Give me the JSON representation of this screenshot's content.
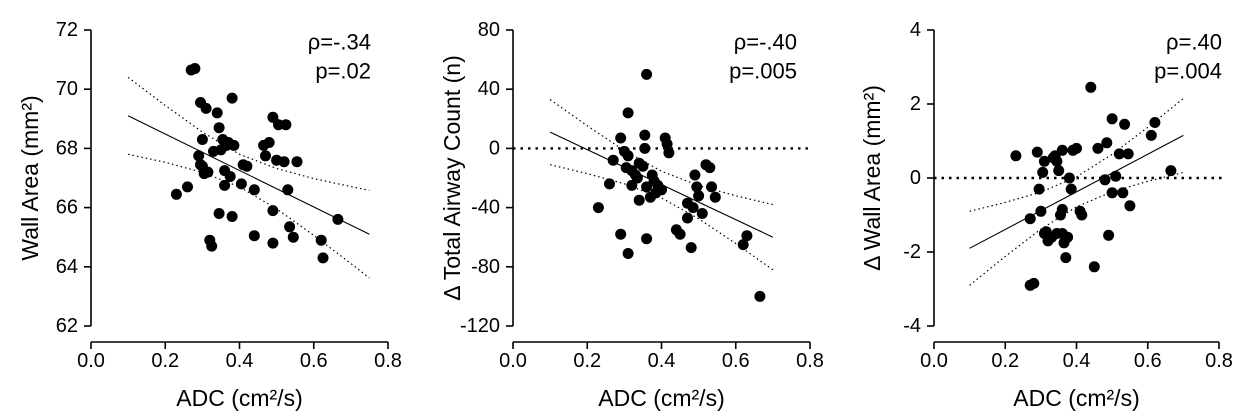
{
  "colors": {
    "foreground": "#000000",
    "background": "#ffffff"
  },
  "chart_data": [
    {
      "type": "scatter",
      "xlabel": "ADC (cm²/s)",
      "ylabel": "Wall Area (mm²)",
      "xlim": [
        0,
        0.8
      ],
      "ylim": [
        62,
        72
      ],
      "xtick_values": [
        0,
        0.2,
        0.4,
        0.6,
        0.8
      ],
      "xtick_labels": [
        "0.0",
        "0.2",
        "0.4",
        "0.6",
        "0.8"
      ],
      "ytick_values": [
        62,
        64,
        66,
        68,
        70,
        72
      ],
      "ytick_labels": [
        "62",
        "64",
        "66",
        "68",
        "70",
        "72"
      ],
      "annotations": [
        "ρ=-.34",
        "p=.02"
      ],
      "grid": false,
      "legend": "none",
      "reference_line_y": null,
      "points": {
        "x": [
          0.23,
          0.26,
          0.27,
          0.28,
          0.295,
          0.31,
          0.3,
          0.29,
          0.295,
          0.305,
          0.315,
          0.33,
          0.34,
          0.345,
          0.35,
          0.355,
          0.36,
          0.365,
          0.37,
          0.375,
          0.38,
          0.385,
          0.345,
          0.36,
          0.38,
          0.32,
          0.325,
          0.41,
          0.42,
          0.405,
          0.44,
          0.44,
          0.465,
          0.48,
          0.47,
          0.49,
          0.505,
          0.5,
          0.525,
          0.52,
          0.555,
          0.49,
          0.49,
          0.53,
          0.535,
          0.545,
          0.62,
          0.625,
          0.665,
          0.3
        ],
        "y": [
          66.45,
          66.7,
          70.65,
          70.7,
          69.55,
          69.35,
          68.3,
          67.75,
          67.45,
          67.15,
          67.2,
          67.9,
          69.2,
          68.7,
          67.95,
          68.3,
          67.25,
          68.1,
          68.2,
          67.05,
          69.7,
          68.1,
          65.8,
          66.75,
          65.7,
          64.9,
          64.7,
          67.45,
          67.4,
          66.8,
          66.6,
          65.05,
          68.1,
          68.2,
          67.75,
          69.05,
          68.8,
          67.6,
          68.8,
          67.55,
          67.55,
          65.9,
          64.8,
          66.6,
          65.35,
          65.0,
          64.9,
          64.3,
          65.6,
          67.4
        ]
      },
      "fit_line": {
        "x": [
          0.1,
          0.75
        ],
        "y": [
          69.1,
          65.1
        ]
      },
      "ci_upper": {
        "x": [
          0.1,
          0.2,
          0.3,
          0.4,
          0.5,
          0.6,
          0.7,
          0.75
        ],
        "y": [
          70.4,
          69.45,
          68.55,
          67.8,
          67.32,
          66.98,
          66.71,
          66.58
        ]
      },
      "ci_lower": {
        "x": [
          0.1,
          0.2,
          0.3,
          0.4,
          0.5,
          0.6,
          0.7,
          0.75
        ],
        "y": [
          67.8,
          67.53,
          67.19,
          66.7,
          65.96,
          65.06,
          64.11,
          63.62
        ]
      }
    },
    {
      "type": "scatter",
      "xlabel": "ADC (cm²/s)",
      "ylabel": "Δ Total Airway Count (n)",
      "xlim": [
        0,
        0.8
      ],
      "ylim": [
        -120,
        80
      ],
      "xtick_values": [
        0,
        0.2,
        0.4,
        0.6,
        0.8
      ],
      "xtick_labels": [
        "0.0",
        "0.2",
        "0.4",
        "0.6",
        "0.8"
      ],
      "ytick_values": [
        -120,
        -80,
        -40,
        0,
        40,
        80
      ],
      "ytick_labels": [
        "-120",
        "-80",
        "-40",
        "0",
        "40",
        "80"
      ],
      "annotations": [
        "ρ=-.40",
        "p=.005"
      ],
      "grid": false,
      "legend": "none",
      "reference_line_y": 0,
      "points": {
        "x": [
          0.23,
          0.26,
          0.27,
          0.29,
          0.3,
          0.31,
          0.305,
          0.31,
          0.32,
          0.33,
          0.335,
          0.34,
          0.35,
          0.36,
          0.355,
          0.36,
          0.37,
          0.375,
          0.38,
          0.39,
          0.385,
          0.41,
          0.415,
          0.42,
          0.29,
          0.31,
          0.36,
          0.44,
          0.45,
          0.47,
          0.48,
          0.485,
          0.49,
          0.495,
          0.5,
          0.51,
          0.52,
          0.53,
          0.535,
          0.545,
          0.62,
          0.63,
          0.665,
          0.4,
          0.34,
          0.32,
          0.47,
          0.355
        ],
        "y": [
          -40,
          -24,
          -8,
          7,
          -2,
          24,
          -13,
          -5,
          -15,
          -18,
          -20,
          -10,
          -12,
          50,
          9,
          -26,
          -33,
          -18,
          -22,
          -25,
          -30,
          7,
          3,
          -3,
          -58,
          -71,
          -61,
          -55,
          -58,
          -47,
          -67,
          -40,
          -18,
          -26,
          -32,
          -44,
          -11,
          -13,
          -26,
          -33,
          -65,
          -59,
          -100,
          -28,
          -35,
          -25,
          -37,
          0
        ]
      },
      "fit_line": {
        "x": [
          0.1,
          0.7
        ],
        "y": [
          11.0,
          -60.0
        ]
      },
      "ci_upper": {
        "x": [
          0.1,
          0.2,
          0.3,
          0.4,
          0.5,
          0.6,
          0.7
        ],
        "y": [
          33.0,
          15.3,
          -1.5,
          -15.5,
          -25.1,
          -32.0,
          -38.0
        ]
      },
      "ci_lower": {
        "x": [
          0.1,
          0.2,
          0.3,
          0.4,
          0.5,
          0.6,
          0.7
        ],
        "y": [
          -11.0,
          -17.0,
          -23.9,
          -33.5,
          -47.5,
          -64.3,
          -82.0
        ]
      }
    },
    {
      "type": "scatter",
      "xlabel": "ADC (cm²/s)",
      "ylabel": "Δ Wall Area (mm²)",
      "xlim": [
        0,
        0.8
      ],
      "ylim": [
        -4,
        4
      ],
      "xtick_values": [
        0,
        0.2,
        0.4,
        0.6,
        0.8
      ],
      "xtick_labels": [
        "0.0",
        "0.2",
        "0.4",
        "0.6",
        "0.8"
      ],
      "ytick_values": [
        -4,
        -2,
        0,
        2,
        4
      ],
      "ytick_labels": [
        "-4",
        "-2",
        "0",
        "2",
        "4"
      ],
      "annotations": [
        "ρ=.40",
        "p=.004"
      ],
      "grid": false,
      "legend": "none",
      "reference_line_y": 0,
      "points": {
        "x": [
          0.23,
          0.27,
          0.27,
          0.28,
          0.29,
          0.295,
          0.3,
          0.305,
          0.31,
          0.31,
          0.315,
          0.32,
          0.33,
          0.335,
          0.34,
          0.345,
          0.35,
          0.355,
          0.36,
          0.36,
          0.365,
          0.37,
          0.375,
          0.38,
          0.385,
          0.39,
          0.4,
          0.41,
          0.415,
          0.44,
          0.45,
          0.46,
          0.48,
          0.485,
          0.49,
          0.5,
          0.5,
          0.51,
          0.52,
          0.53,
          0.535,
          0.545,
          0.55,
          0.61,
          0.62,
          0.665,
          0.345,
          0.36
        ],
        "y": [
          0.6,
          -1.1,
          -2.9,
          -2.85,
          0.7,
          -0.3,
          -0.9,
          0.15,
          0.45,
          -1.5,
          -1.45,
          -1.7,
          -1.6,
          0.55,
          0.6,
          0.45,
          0.2,
          -1.0,
          -1.5,
          0.75,
          -1.75,
          -2.15,
          -1.6,
          0.0,
          -0.3,
          0.75,
          0.8,
          -0.9,
          -1.0,
          2.45,
          -2.4,
          0.8,
          -0.05,
          0.95,
          -1.55,
          1.6,
          -0.4,
          0.05,
          0.65,
          -0.4,
          1.45,
          0.65,
          -0.75,
          1.15,
          1.5,
          0.2,
          -1.5,
          -0.85
        ]
      },
      "fit_line": {
        "x": [
          0.1,
          0.7
        ],
        "y": [
          -1.9,
          1.15
        ]
      },
      "ci_upper": {
        "x": [
          0.1,
          0.2,
          0.3,
          0.4,
          0.5,
          0.6,
          0.7
        ],
        "y": [
          -0.9,
          -0.66,
          -0.38,
          0.03,
          0.64,
          1.37,
          2.15
        ]
      },
      "ci_lower": {
        "x": [
          0.1,
          0.2,
          0.3,
          0.4,
          0.5,
          0.6,
          0.7
        ],
        "y": [
          -2.9,
          -2.12,
          -1.38,
          -0.78,
          -0.37,
          -0.09,
          0.15
        ]
      }
    }
  ]
}
